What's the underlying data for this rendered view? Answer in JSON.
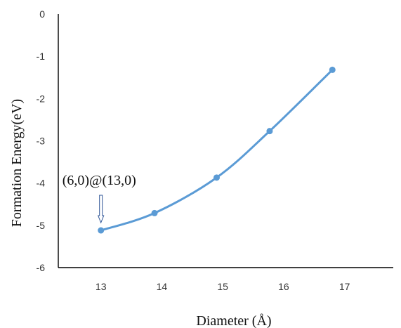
{
  "chart_data": {
    "type": "scatter",
    "title": "",
    "xlabel": "Diameter (Å)",
    "ylabel": "Formation Energy(eV)",
    "xlim": [
      12.3,
      17.8
    ],
    "ylim": [
      -6,
      0
    ],
    "x_ticks": [
      "13",
      "14",
      "15",
      "16",
      "17"
    ],
    "y_ticks": [
      "0",
      "-1",
      "-2",
      "-3",
      "-4",
      "-5",
      "-6"
    ],
    "grid": false,
    "smoothed_line": true,
    "series": [
      {
        "color": "#5b9bd5",
        "points": [
          {
            "x": 13.0,
            "y": -5.12
          },
          {
            "x": 13.88,
            "y": -4.71
          },
          {
            "x": 14.9,
            "y": -3.87
          },
          {
            "x": 15.77,
            "y": -2.77
          },
          {
            "x": 16.8,
            "y": -1.32
          }
        ]
      }
    ],
    "annotations": [
      {
        "text": "(6,0)@(13,0)",
        "x": 13.0,
        "y": -5.12,
        "arrow": "down"
      }
    ]
  }
}
